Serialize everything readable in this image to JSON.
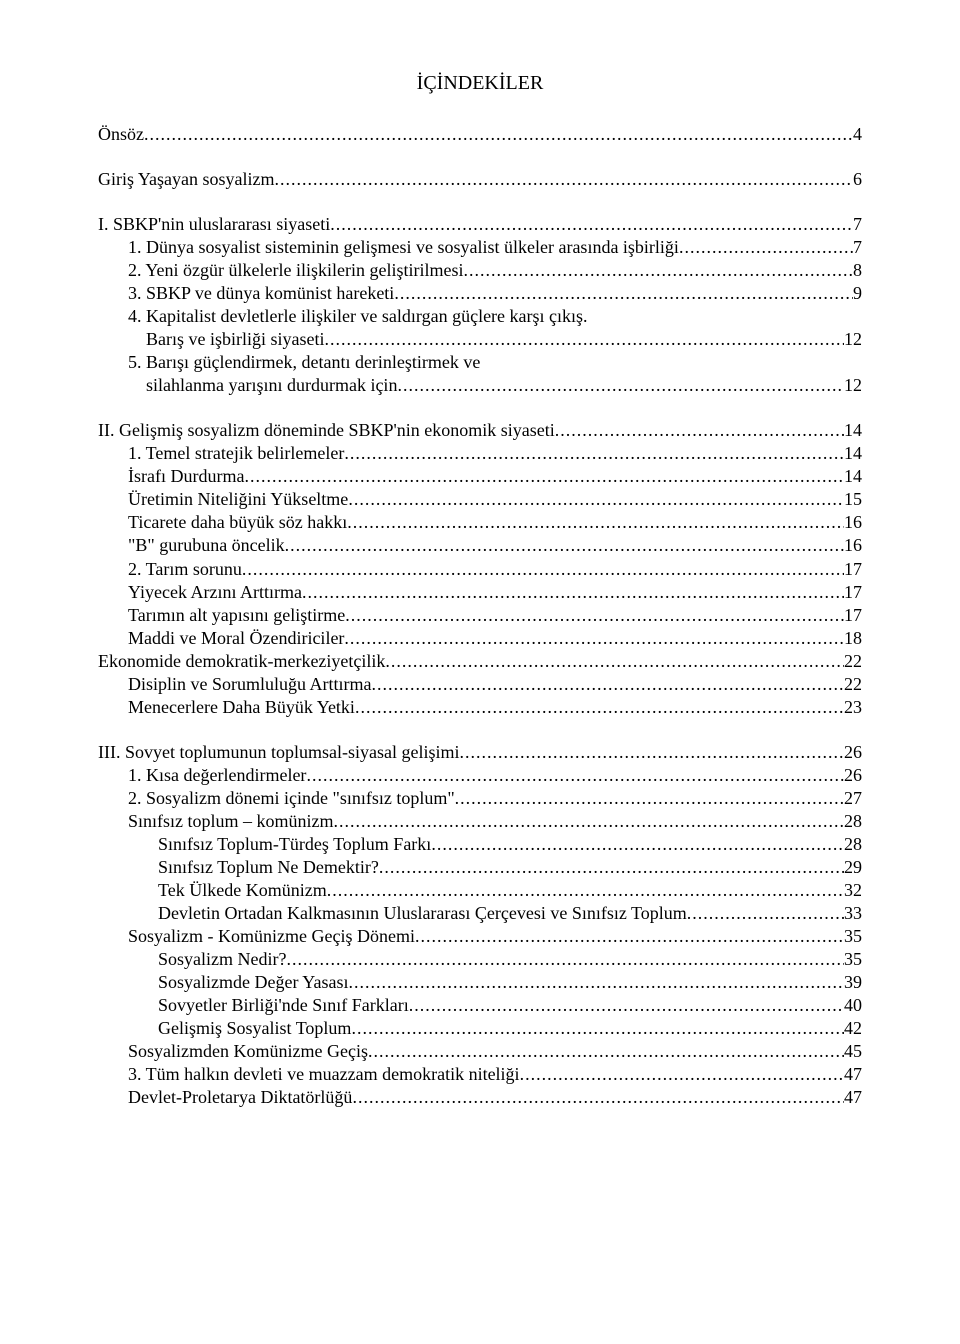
{
  "title": "İÇİNDEKİLER",
  "toc": [
    {
      "type": "row",
      "indent": 0,
      "label": "Önsöz",
      "page": "4"
    },
    {
      "type": "gap"
    },
    {
      "type": "row",
      "indent": 0,
      "label": "Giriş Yaşayan sosyalizm",
      "page": "6"
    },
    {
      "type": "gap"
    },
    {
      "type": "row",
      "indent": 0,
      "label": "I. SBKP'nin uluslararası siyaseti",
      "page": "7"
    },
    {
      "type": "row",
      "indent": 1,
      "label": "1. Dünya sosyalist sisteminin gelişmesi ve sosyalist ülkeler arasında işbirliği",
      "page": "7"
    },
    {
      "type": "row",
      "indent": 1,
      "label": "2. Yeni özgür ülkelerle ilişkilerin geliştirilmesi",
      "page": "8"
    },
    {
      "type": "row",
      "indent": 1,
      "label": "3. SBKP ve dünya komünist hareketi",
      "page": "9"
    },
    {
      "type": "row",
      "indent": 1,
      "label": "4. Kapitalist devletlerle ilişkiler ve saldırgan güçlere karşı çıkış.",
      "page": ""
    },
    {
      "type": "row",
      "indent": 1,
      "label": "    Barış ve işbirliği siyaseti",
      "page": "12"
    },
    {
      "type": "row",
      "indent": 1,
      "label": "5. Barışı güçlendirmek, detantı derinleştirmek ve",
      "page": ""
    },
    {
      "type": "row",
      "indent": 1,
      "label": "    silahlanma yarışını durdurmak için",
      "page": "12"
    },
    {
      "type": "gap"
    },
    {
      "type": "row",
      "indent": 0,
      "label": "II. Gelişmiş sosyalizm döneminde SBKP'nin ekonomik siyaseti",
      "page": "14"
    },
    {
      "type": "row",
      "indent": 1,
      "label": "1. Temel stratejik belirlemeler",
      "page": "14"
    },
    {
      "type": "row",
      "indent": 1,
      "label": "İsrafı Durdurma",
      "page": "14"
    },
    {
      "type": "row",
      "indent": 1,
      "label": "Üretimin Niteliğini Yükseltme",
      "page": "15"
    },
    {
      "type": "row",
      "indent": 1,
      "label": "Ticarete daha büyük söz hakkı",
      "page": "16"
    },
    {
      "type": "row",
      "indent": 1,
      "label": "\"B\" gurubuna öncelik",
      "page": "16"
    },
    {
      "type": "row",
      "indent": 1,
      "label": "2. Tarım sorunu",
      "page": "17"
    },
    {
      "type": "row",
      "indent": 1,
      "label": "Yiyecek Arzını Arttırma",
      "page": "17"
    },
    {
      "type": "row",
      "indent": 1,
      "label": "Tarımın alt yapısını geliştirme",
      "page": "17"
    },
    {
      "type": "row",
      "indent": 1,
      "label": "Maddi ve Moral Özendiriciler",
      "page": "18"
    },
    {
      "type": "row",
      "indent": 0,
      "label": "Ekonomide demokratik-merkeziyetçilik",
      "page": "22"
    },
    {
      "type": "row",
      "indent": 1,
      "label": "Disiplin ve Sorumluluğu Arttırma",
      "page": "22"
    },
    {
      "type": "row",
      "indent": 1,
      "label": "Menecerlere Daha Büyük Yetki",
      "page": "23"
    },
    {
      "type": "gap"
    },
    {
      "type": "row",
      "indent": 0,
      "label": "III. Sovyet toplumunun toplumsal-siyasal gelişimi",
      "page": "26"
    },
    {
      "type": "row",
      "indent": 1,
      "label": "1. Kısa değerlendirmeler",
      "page": "26"
    },
    {
      "type": "row",
      "indent": 1,
      "label": "2. Sosyalizm dönemi içinde \"sınıfsız toplum\"",
      "page": "27"
    },
    {
      "type": "row",
      "indent": 1,
      "label": "Sınıfsız toplum – komünizm",
      "page": "28"
    },
    {
      "type": "row",
      "indent": 2,
      "label": "Sınıfsız Toplum-Türdeş Toplum Farkı",
      "page": "28"
    },
    {
      "type": "row",
      "indent": 2,
      "label": "Sınıfsız Toplum Ne Demektir?",
      "page": "29"
    },
    {
      "type": "row",
      "indent": 2,
      "label": "Tek Ülkede Komünizm",
      "page": "32"
    },
    {
      "type": "row",
      "indent": 2,
      "label": "Devletin Ortadan Kalkmasının Uluslararası Çerçevesi ve Sınıfsız Toplum",
      "page": "33"
    },
    {
      "type": "row",
      "indent": 1,
      "label": "Sosyalizm - Komünizme Geçiş Dönemi",
      "page": "35"
    },
    {
      "type": "row",
      "indent": 2,
      "label": "Sosyalizm Nedir?",
      "page": "35"
    },
    {
      "type": "row",
      "indent": 2,
      "label": "Sosyalizmde Değer Yasası",
      "page": "39"
    },
    {
      "type": "row",
      "indent": 2,
      "label": "Sovyetler Birliği'nde Sınıf Farkları",
      "page": "40"
    },
    {
      "type": "row",
      "indent": 2,
      "label": "Gelişmiş Sosyalist Toplum",
      "page": "42"
    },
    {
      "type": "row",
      "indent": 1,
      "label": "Sosyalizmden Komünizme Geçiş",
      "page": "45"
    },
    {
      "type": "row",
      "indent": 1,
      "label": "3. Tüm halkın devleti ve muazzam demokratik niteliği",
      "page": "47"
    },
    {
      "type": "row",
      "indent": 1,
      "label": "Devlet-Proletarya Diktatörlüğü",
      "page": "47"
    }
  ]
}
